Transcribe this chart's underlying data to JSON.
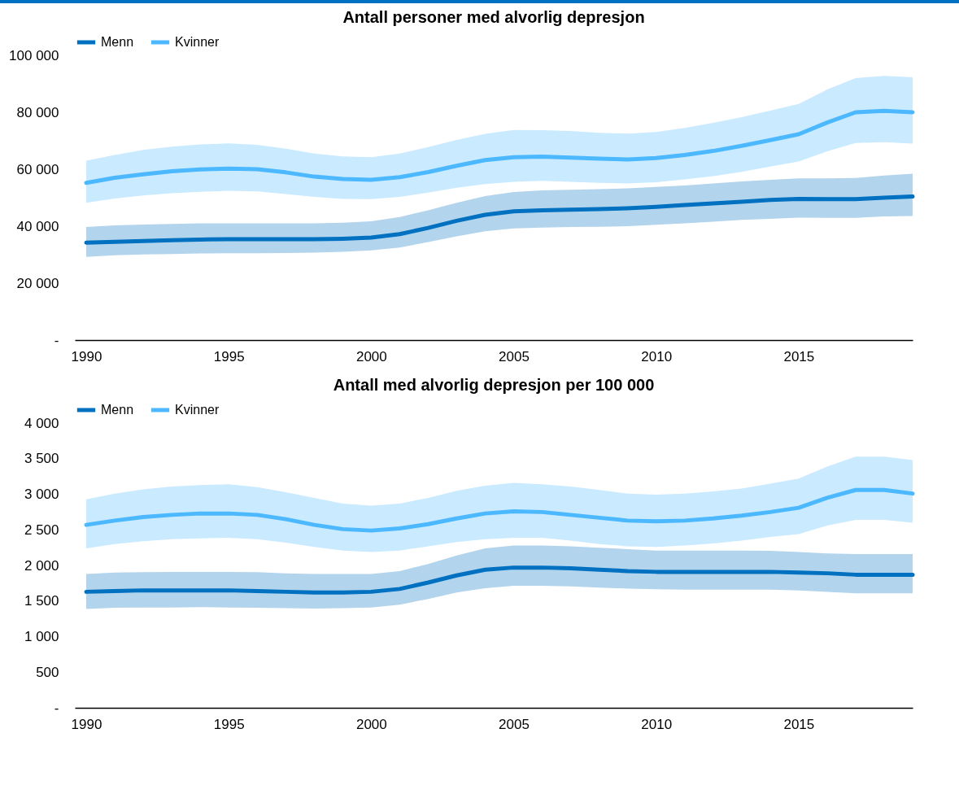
{
  "chart_data": [
    {
      "type": "line",
      "title": "Antall personer med alvorlig depresjon",
      "x": [
        1990,
        1991,
        1992,
        1993,
        1994,
        1995,
        1996,
        1997,
        1998,
        1999,
        2000,
        2001,
        2002,
        2003,
        2004,
        2005,
        2006,
        2007,
        2008,
        2009,
        2010,
        2011,
        2012,
        2013,
        2014,
        2015,
        2016,
        2017,
        2018,
        2019
      ],
      "xlim": [
        1989.6,
        2019
      ],
      "xticks": [
        1990,
        1995,
        2000,
        2005,
        2010,
        2015
      ],
      "ylim": [
        0,
        100000
      ],
      "yticks": [
        {
          "value": 0,
          "label": "-"
        },
        {
          "value": 20000,
          "label": "20 000"
        },
        {
          "value": 40000,
          "label": "40 000"
        },
        {
          "value": 60000,
          "label": "60 000"
        },
        {
          "value": 80000,
          "label": "80 000"
        },
        {
          "value": 100000,
          "label": "100 000"
        }
      ],
      "legend": "top",
      "grid": false,
      "series": [
        {
          "name": "Menn",
          "color": "#0070c0",
          "values": [
            34200,
            34500,
            34800,
            35100,
            35300,
            35400,
            35400,
            35400,
            35400,
            35600,
            36000,
            37200,
            39400,
            41900,
            44000,
            45200,
            45600,
            45800,
            46000,
            46300,
            46800,
            47400,
            48000,
            48600,
            49200,
            49600,
            49500,
            49500,
            50000,
            50400
          ],
          "lower": [
            29200,
            29800,
            30100,
            30200,
            30400,
            30500,
            30500,
            30600,
            30700,
            31000,
            31500,
            32500,
            34400,
            36400,
            38200,
            39200,
            39500,
            39700,
            39800,
            40000,
            40500,
            41000,
            41600,
            42200,
            42600,
            43000,
            42900,
            42900,
            43400,
            43600
          ],
          "upper": [
            39700,
            40300,
            40600,
            40800,
            41000,
            41000,
            41000,
            41000,
            41000,
            41200,
            41700,
            43200,
            45600,
            48200,
            50600,
            52000,
            52600,
            52800,
            53000,
            53300,
            53800,
            54300,
            55000,
            55700,
            56300,
            56800,
            56800,
            56900,
            57800,
            58400
          ]
        },
        {
          "name": "Kvinner",
          "color": "#4db8ff",
          "values": [
            55200,
            57000,
            58200,
            59300,
            59900,
            60200,
            60000,
            58900,
            57400,
            56600,
            56300,
            57200,
            59000,
            61200,
            63200,
            64200,
            64400,
            64100,
            63700,
            63400,
            63900,
            65000,
            66400,
            68200,
            70200,
            72300,
            76400,
            80000,
            80500,
            80000
          ],
          "lower": [
            48200,
            49700,
            50800,
            51600,
            52100,
            52400,
            52200,
            51300,
            50300,
            49600,
            49500,
            50300,
            51800,
            53500,
            54800,
            55600,
            55900,
            55600,
            55200,
            55000,
            55400,
            56400,
            57600,
            59100,
            60900,
            62700,
            66300,
            69200,
            69500,
            69000
          ],
          "upper": [
            63000,
            65000,
            66800,
            67900,
            68700,
            69100,
            68600,
            67200,
            65500,
            64500,
            64200,
            65500,
            67800,
            70300,
            72400,
            73800,
            73700,
            73400,
            72800,
            72500,
            73100,
            74500,
            76300,
            78300,
            80600,
            82900,
            88000,
            92000,
            92800,
            92300
          ]
        }
      ]
    },
    {
      "type": "line",
      "title": "Antall med alvorlig depresjon per 100 000",
      "x": [
        1990,
        1991,
        1992,
        1993,
        1994,
        1995,
        1996,
        1997,
        1998,
        1999,
        2000,
        2001,
        2002,
        2003,
        2004,
        2005,
        2006,
        2007,
        2008,
        2009,
        2010,
        2011,
        2012,
        2013,
        2014,
        2015,
        2016,
        2017,
        2018,
        2019
      ],
      "xlim": [
        1989.6,
        2019
      ],
      "xticks": [
        1990,
        1995,
        2000,
        2005,
        2010,
        2015
      ],
      "ylim": [
        0,
        4000
      ],
      "yticks": [
        {
          "value": 0,
          "label": "-"
        },
        500,
        {
          "value": 1000,
          "label": "1 000"
        },
        {
          "value": 1500,
          "label": "1 500"
        },
        {
          "value": 2000,
          "label": "2 000"
        },
        {
          "value": 2500,
          "label": "2 500"
        },
        {
          "value": 3000,
          "label": "3 000"
        },
        {
          "value": 3500,
          "label": "3 500"
        },
        {
          "value": 4000,
          "label": "4 000"
        }
      ],
      "legend": "top",
      "grid": false,
      "series": [
        {
          "name": "Menn",
          "color": "#0070c0",
          "values": [
            1630,
            1640,
            1650,
            1650,
            1650,
            1650,
            1640,
            1630,
            1620,
            1620,
            1630,
            1670,
            1760,
            1860,
            1940,
            1970,
            1970,
            1960,
            1940,
            1920,
            1910,
            1910,
            1910,
            1910,
            1910,
            1900,
            1890,
            1870,
            1870,
            1870
          ],
          "lower": [
            1390,
            1405,
            1410,
            1410,
            1415,
            1410,
            1405,
            1400,
            1395,
            1400,
            1410,
            1450,
            1530,
            1620,
            1680,
            1715,
            1715,
            1705,
            1690,
            1675,
            1665,
            1660,
            1660,
            1660,
            1660,
            1650,
            1630,
            1610,
            1610,
            1610
          ],
          "upper": [
            1880,
            1900,
            1905,
            1910,
            1910,
            1910,
            1905,
            1890,
            1880,
            1880,
            1880,
            1920,
            2020,
            2140,
            2240,
            2280,
            2280,
            2270,
            2250,
            2230,
            2210,
            2210,
            2210,
            2210,
            2205,
            2190,
            2170,
            2160,
            2160,
            2160
          ]
        },
        {
          "name": "Kvinner",
          "color": "#4db8ff",
          "values": [
            2570,
            2630,
            2680,
            2710,
            2730,
            2730,
            2710,
            2650,
            2570,
            2510,
            2490,
            2520,
            2580,
            2660,
            2730,
            2760,
            2750,
            2710,
            2670,
            2630,
            2620,
            2630,
            2660,
            2700,
            2750,
            2810,
            2950,
            3060,
            3060,
            3010
          ],
          "lower": [
            2240,
            2300,
            2340,
            2370,
            2380,
            2390,
            2370,
            2320,
            2260,
            2210,
            2190,
            2210,
            2270,
            2330,
            2370,
            2390,
            2390,
            2350,
            2300,
            2270,
            2260,
            2280,
            2310,
            2350,
            2400,
            2440,
            2560,
            2640,
            2640,
            2600
          ],
          "upper": [
            2930,
            3010,
            3070,
            3110,
            3130,
            3140,
            3100,
            3030,
            2950,
            2870,
            2840,
            2870,
            2950,
            3050,
            3120,
            3160,
            3140,
            3110,
            3060,
            3010,
            2995,
            3010,
            3040,
            3080,
            3150,
            3220,
            3390,
            3530,
            3530,
            3480
          ]
        }
      ]
    }
  ]
}
